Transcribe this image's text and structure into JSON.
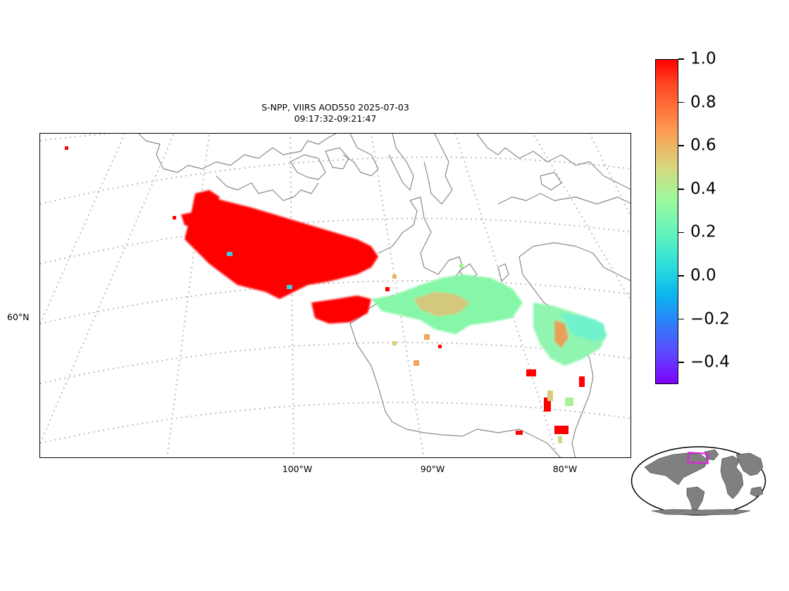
{
  "title": {
    "line1": "S-NPP, VIIRS AOD550 2025-07-03",
    "line2": "09:17:32-09:21:47"
  },
  "map": {
    "projection": "conic",
    "gridlines": "dotted",
    "lat_labels": [
      "60°N"
    ],
    "lon_labels": [
      "100°W",
      "90°W",
      "80°W"
    ],
    "colors": {
      "land_outline": "#888888",
      "grid": "#bbbbbb",
      "frame": "#000000"
    }
  },
  "colorbar": {
    "colormap": "rainbow",
    "vmin": -0.5,
    "vmax": 1.0,
    "tick_labels": [
      "1.0",
      "0.8",
      "0.6",
      "0.4",
      "0.2",
      "0.0",
      "−0.2",
      "−0.4"
    ],
    "tick_values": [
      1.0,
      0.8,
      0.6,
      0.4,
      0.2,
      0.0,
      -0.2,
      -0.4
    ]
  },
  "inset": {
    "type": "world-overview",
    "highlight_color": "#e020e0",
    "land_color": "#808080"
  }
}
